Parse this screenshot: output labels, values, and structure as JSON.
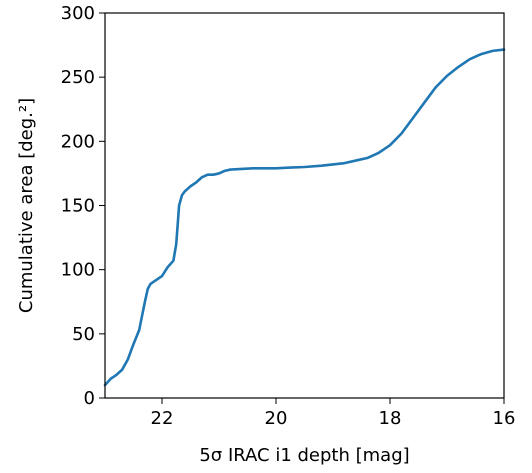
{
  "chart_data": {
    "type": "line",
    "xlabel": "5σ IRAC i1 depth [mag]",
    "ylabel": "Cumulative area [deg.²]",
    "xlim": [
      23.0,
      16.0
    ],
    "ylim": [
      0,
      300
    ],
    "x_reversed": true,
    "grid": false,
    "line_color": "#1f77b4",
    "xticks": [
      22,
      20,
      18,
      16
    ],
    "yticks": [
      0,
      50,
      100,
      150,
      200,
      250,
      300
    ],
    "series": [
      {
        "x": [
          23.0,
          22.9,
          22.8,
          22.7,
          22.6,
          22.5,
          22.4,
          22.3,
          22.25,
          22.2,
          22.1,
          22.0,
          21.9,
          21.8,
          21.75,
          21.7,
          21.65,
          21.6,
          21.55,
          21.5,
          21.4,
          21.3,
          21.2,
          21.1,
          21.0,
          20.9,
          20.8,
          20.6,
          20.4,
          20.2,
          20.0,
          19.8,
          19.5,
          19.2,
          19.0,
          18.8,
          18.6,
          18.4,
          18.2,
          18.0,
          17.8,
          17.6,
          17.4,
          17.2,
          17.0,
          16.8,
          16.6,
          16.4,
          16.2,
          16.0
        ],
        "y": [
          10,
          15,
          18,
          22,
          30,
          42,
          53,
          75,
          85,
          89,
          92,
          95,
          102,
          107,
          120,
          150,
          158,
          161,
          163,
          165,
          168,
          172,
          174,
          174,
          175,
          177,
          178,
          178.5,
          179,
          179,
          179,
          179.5,
          180,
          181,
          182,
          183,
          185,
          187,
          191,
          197,
          206,
          218,
          230,
          242,
          251,
          258,
          264,
          268,
          270.5,
          271.5
        ]
      }
    ]
  }
}
